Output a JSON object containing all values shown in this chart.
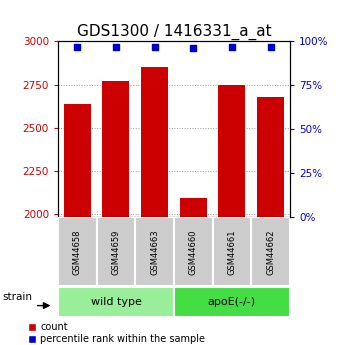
{
  "title": "GDS1300 / 1416331_a_at",
  "samples": [
    "GSM44658",
    "GSM44659",
    "GSM44663",
    "GSM44660",
    "GSM44661",
    "GSM44662"
  ],
  "group_labels": [
    "wild type",
    "apoE(-/-)"
  ],
  "count_values": [
    2640,
    2770,
    2850,
    2090,
    2750,
    2680
  ],
  "percentile_values": [
    97,
    97,
    97,
    96,
    97,
    97
  ],
  "ylim_left": [
    1980,
    3000
  ],
  "ylim_right": [
    0,
    100
  ],
  "yticks_left": [
    2000,
    2250,
    2500,
    2750,
    3000
  ],
  "yticks_right": [
    0,
    25,
    50,
    75,
    100
  ],
  "bar_color": "#cc0000",
  "dot_color": "#0000cc",
  "left_tick_color": "#cc0000",
  "right_tick_color": "#0000cc",
  "title_fontsize": 11,
  "group_colors": [
    "#99ee99",
    "#44dd44"
  ],
  "tick_box_color": "#cccccc",
  "grid_color": "#999999",
  "legend_red_label": "count",
  "legend_blue_label": "percentile rank within the sample",
  "strain_label": "strain",
  "bar_width": 0.7
}
